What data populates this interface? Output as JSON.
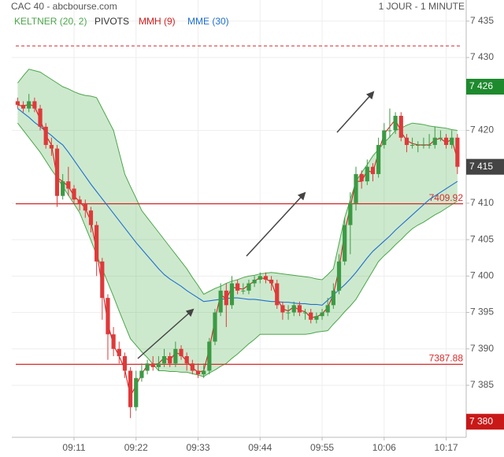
{
  "chart_data": {
    "type": "candlestick",
    "title": "CAC 40 - abcbourse.com",
    "subtitle": "1 JOUR - 1 MINUTE",
    "categories": [
      null,
      null,
      null,
      null,
      null,
      null,
      null,
      null,
      null,
      null,
      "09:11",
      null,
      null,
      null,
      null,
      null,
      null,
      null,
      null,
      null,
      null,
      "09:22",
      null,
      null,
      null,
      null,
      null,
      null,
      null,
      null,
      null,
      null,
      "09:33",
      null,
      null,
      null,
      null,
      null,
      null,
      null,
      null,
      null,
      null,
      "09:44",
      null,
      null,
      null,
      null,
      null,
      null,
      null,
      null,
      null,
      null,
      "09:55",
      null,
      null,
      null,
      null,
      null,
      null,
      null,
      null,
      null,
      null,
      "10:06",
      null,
      null,
      null,
      null,
      null,
      null,
      null,
      null,
      null,
      null,
      "10:17",
      null,
      null
    ],
    "open": [
      7424,
      7423.5,
      7423,
      7424,
      7423,
      7420.5,
      7418,
      7417.5,
      7411,
      7413,
      7412,
      7410.5,
      7410,
      7409,
      7407,
      7402,
      7397,
      7392,
      7390,
      7389,
      7387,
      7382,
      7386,
      7387,
      7388,
      7387.5,
      7388,
      7389,
      7388,
      7390,
      7389,
      7388,
      7387,
      7386.5,
      7387,
      7391,
      7395,
      7398,
      7396,
      7399,
      7398,
      7398,
      7399,
      7399.5,
      7400,
      7399.5,
      7399,
      7396,
      7395,
      7395,
      7396,
      7395,
      7395,
      7394,
      7394.5,
      7395,
      7396,
      7398,
      7402,
      7407,
      7410,
      7414,
      7413,
      7415,
      7414,
      7418,
      7420,
      7420,
      7422,
      7419,
      7418,
      7418,
      7418,
      7418,
      7418,
      7419,
      7419,
      7418,
      7419
    ],
    "high": [
      7424.5,
      7424,
      7425,
      7424.5,
      7423.5,
      7421,
      7419,
      7418,
      7414,
      7415,
      7412.5,
      7411,
      7410.5,
      7409.5,
      7407.5,
      7402.5,
      7397.5,
      7393,
      7391,
      7389.5,
      7387.5,
      7387,
      7388,
      7388.5,
      7389,
      7389,
      7390,
      7389.5,
      7391,
      7390.5,
      7389.5,
      7388.5,
      7388,
      7388,
      7391.5,
      7395.5,
      7399,
      7399,
      7400,
      7399.5,
      7399,
      7399.5,
      7400,
      7400.5,
      7400.5,
      7400,
      7399.5,
      7396.5,
      7396,
      7396.5,
      7396.5,
      7395.5,
      7395.5,
      7395,
      7395.5,
      7397,
      7399,
      7403,
      7408,
      7411.5,
      7415,
      7414.5,
      7416,
      7415.5,
      7419,
      7421,
      7423,
      7422.5,
      7422.5,
      7419.5,
      7419,
      7418.5,
      7419,
      7419.5,
      7420.5,
      7420,
      7419.5,
      7420,
      7419.5
    ],
    "low": [
      7423,
      7422.5,
      7422.5,
      7422.5,
      7420,
      7417.5,
      7416.5,
      7409.5,
      7410.5,
      7411,
      7410,
      7409,
      7408,
      7406,
      7400,
      7394,
      7388.5,
      7389,
      7388,
      7386,
      7380.5,
      7381.5,
      7385.5,
      7386.5,
      7387,
      7387,
      7387.5,
      7387.5,
      7387.5,
      7388.5,
      7387,
      7386.5,
      7386,
      7386,
      7386.5,
      7390.5,
      7394.5,
      7393,
      7395.5,
      7397.5,
      7397.5,
      7397.5,
      7398.5,
      7399,
      7399,
      7398,
      7395.5,
      7394,
      7394,
      7394.5,
      7394.5,
      7394,
      7393.5,
      7393.5,
      7394,
      7394.5,
      7395.5,
      7397.5,
      7401.5,
      7403,
      7409,
      7412,
      7412.5,
      7413,
      7413.5,
      7417.5,
      7419,
      7419.5,
      7418.5,
      7417,
      7417.5,
      7417,
      7417.5,
      7417.5,
      7417.5,
      7418.5,
      7417.5,
      7417.5,
      7414
    ],
    "close": [
      7423.5,
      7423,
      7424,
      7423,
      7420.5,
      7418,
      7417.5,
      7411,
      7413,
      7412,
      7410.5,
      7410,
      7409,
      7407,
      7402,
      7397,
      7392,
      7390,
      7389,
      7387,
      7382,
      7386,
      7387,
      7388,
      7387.5,
      7388,
      7389,
      7388,
      7390,
      7389,
      7388,
      7387,
      7386.5,
      7387,
      7391,
      7395,
      7398,
      7396,
      7399,
      7398,
      7398,
      7399,
      7399.5,
      7400,
      7399.5,
      7399,
      7396,
      7395,
      7395,
      7396,
      7395,
      7395,
      7394,
      7394.5,
      7395,
      7396,
      7398,
      7402,
      7407,
      7410,
      7414,
      7413,
      7415,
      7414,
      7418,
      7420,
      7420,
      7422,
      7419,
      7418,
      7418,
      7418,
      7418,
      7418,
      7419,
      7419,
      7418,
      7419,
      7415
    ],
    "up_color": "#3c9a44",
    "down_color": "#de3a3a",
    "keltner": {
      "name": "KELTNER (20, 2)",
      "color": "#4ca64c",
      "fill": "rgba(76,175,76,0.28)",
      "upper": [
        7426.5,
        7427.5,
        7428.4,
        7428.2,
        7428,
        7427.5,
        7427,
        7426.5,
        7426,
        7425.7,
        7425.3,
        7425,
        7424.8,
        7424.7,
        7424.5,
        7423,
        7421.5,
        7420,
        7417,
        7414,
        7412.3,
        7410.7,
        7409,
        7408,
        7407,
        7406,
        7405,
        7404,
        7403,
        7402,
        7401,
        7399.8,
        7398.7,
        7397.5,
        7397.9,
        7398.3,
        7398.6,
        7399,
        7399.3,
        7399.5,
        7399.8,
        7400,
        7400.1,
        7400.3,
        7400.4,
        7400.5,
        7400.4,
        7400.3,
        7400.2,
        7400.1,
        7400,
        7399.9,
        7399.8,
        7399.6,
        7399.5,
        7400.2,
        7401,
        7404.5,
        7408,
        7410.5,
        7413,
        7414.2,
        7415.3,
        7416.5,
        7417.4,
        7418.3,
        7419.1,
        7420,
        7420.3,
        7420.7,
        7421,
        7420.9,
        7420.8,
        7420.6,
        7420.5,
        7420.4,
        7420.3,
        7420.1,
        7420
      ],
      "lower": [
        7421,
        7420,
        7419,
        7418,
        7417,
        7415.8,
        7414.6,
        7413.5,
        7412.3,
        7411.1,
        7409.9,
        7408.7,
        7406.8,
        7404.9,
        7402.9,
        7401,
        7399.1,
        7397.2,
        7395.2,
        7393.3,
        7391.4,
        7390.5,
        7389.6,
        7388.8,
        7387.9,
        7387,
        7387,
        7386.9,
        7386.9,
        7386.8,
        7386.8,
        7386.6,
        7386.4,
        7386.2,
        7386.7,
        7387.1,
        7387.6,
        7388,
        7388.7,
        7389.3,
        7390,
        7390.7,
        7391.3,
        7392,
        7392,
        7392,
        7392,
        7392,
        7392,
        7392,
        7392,
        7392,
        7392.1,
        7392.3,
        7392.4,
        7392.5,
        7393.4,
        7394.2,
        7395.1,
        7395.9,
        7396.8,
        7398.1,
        7399.4,
        7400.7,
        7402,
        7402.8,
        7403.5,
        7404.3,
        7405,
        7405.8,
        7406.5,
        7407,
        7407.4,
        7407.9,
        7408.4,
        7408.8,
        7409.3,
        7409.8,
        7410.3
      ]
    },
    "pivots": {
      "name": "PIVOTS",
      "color": "#333333",
      "line_color": "#d62c2c",
      "values": [
        7431.6
      ]
    },
    "series": [
      {
        "name": "MMH (9)",
        "color": "#d41f1f",
        "values": [
          7423.5,
          7423.3,
          7423.6,
          7423.3,
          7421.5,
          7419.3,
          7418,
          7413.5,
          7413,
          7412.3,
          7411,
          7410.2,
          7409.3,
          7407.5,
          7403.5,
          7398.5,
          7393.5,
          7390.5,
          7389,
          7387.2,
          7383.5,
          7385,
          7386.5,
          7387.8,
          7387.8,
          7388,
          7388.8,
          7388.4,
          7389.5,
          7389.2,
          7388.3,
          7387.4,
          7386.8,
          7387,
          7390,
          7394,
          7397.5,
          7396.8,
          7398.5,
          7398.3,
          7398.2,
          7398.8,
          7399.3,
          7399.8,
          7399.6,
          7399.2,
          7397,
          7395.5,
          7395.2,
          7395.8,
          7395.3,
          7395.1,
          7394.3,
          7394.4,
          7394.8,
          7395.7,
          7397.5,
          7401,
          7406,
          7409.5,
          7413,
          7413,
          7414.5,
          7414.2,
          7417,
          7419.5,
          7420.5,
          7421.5,
          7419.8,
          7418.6,
          7418.2,
          7418,
          7418,
          7418,
          7418.7,
          7418.9,
          7418.3,
          7418.8,
          7416
        ]
      },
      {
        "name": "MME (30)",
        "color": "#1f6fd0",
        "values": [
          7423,
          7422.4,
          7421.8,
          7421.1,
          7420.5,
          7419.9,
          7419.3,
          7418.6,
          7418,
          7417,
          7415.9,
          7414.8,
          7413.7,
          7412.6,
          7411.6,
          7410.6,
          7409.6,
          7408.6,
          7407.6,
          7406.6,
          7405.6,
          7404.6,
          7403.7,
          7402.8,
          7401.9,
          7401,
          7400.2,
          7399.6,
          7399.1,
          7398.6,
          7398,
          7397.5,
          7397,
          7396.5,
          7396.6,
          7396.7,
          7396.8,
          7396.9,
          7397,
          7397,
          7396.9,
          7396.8,
          7396.8,
          7396.7,
          7396.6,
          7396.5,
          7396.5,
          7396.4,
          7396.4,
          7396.3,
          7396.2,
          7396.2,
          7396.1,
          7396.1,
          7396,
          7396.7,
          7397.4,
          7398.1,
          7398.8,
          7399.6,
          7400.5,
          7401.5,
          7402.5,
          7403.4,
          7404.1,
          7404.8,
          7405.5,
          7406.3,
          7407,
          7407.7,
          7408.4,
          7409.1,
          7409.8,
          7410.5,
          7411,
          7411.5,
          7412,
          7412.5,
          7413
        ]
      }
    ],
    "horizontal_lines": {
      "color": "#d62c2c",
      "values": [
        7409.92,
        7387.88
      ]
    },
    "price_markers": [
      {
        "value": 7426,
        "label": "7 426",
        "color": "#1e8a2e"
      },
      {
        "value": 7415,
        "label": "7 415",
        "color": "#444444"
      },
      {
        "value": 7380,
        "label": "7 380",
        "color": "#c81818"
      }
    ],
    "ylim": [
      7377.86,
      7437.9
    ],
    "yticks": [
      {
        "value": 7435,
        "label": "7 435"
      },
      {
        "value": 7430,
        "label": "7 430"
      },
      {
        "value": 7420,
        "label": "7 420"
      },
      {
        "value": 7410,
        "label": "7 410"
      },
      {
        "value": 7405,
        "label": "7 405"
      },
      {
        "value": 7400,
        "label": "7 400"
      },
      {
        "value": 7395,
        "label": "7 395"
      },
      {
        "value": 7390,
        "label": "7 390"
      },
      {
        "value": 7385,
        "label": "7 385"
      }
    ],
    "grid": true
  }
}
